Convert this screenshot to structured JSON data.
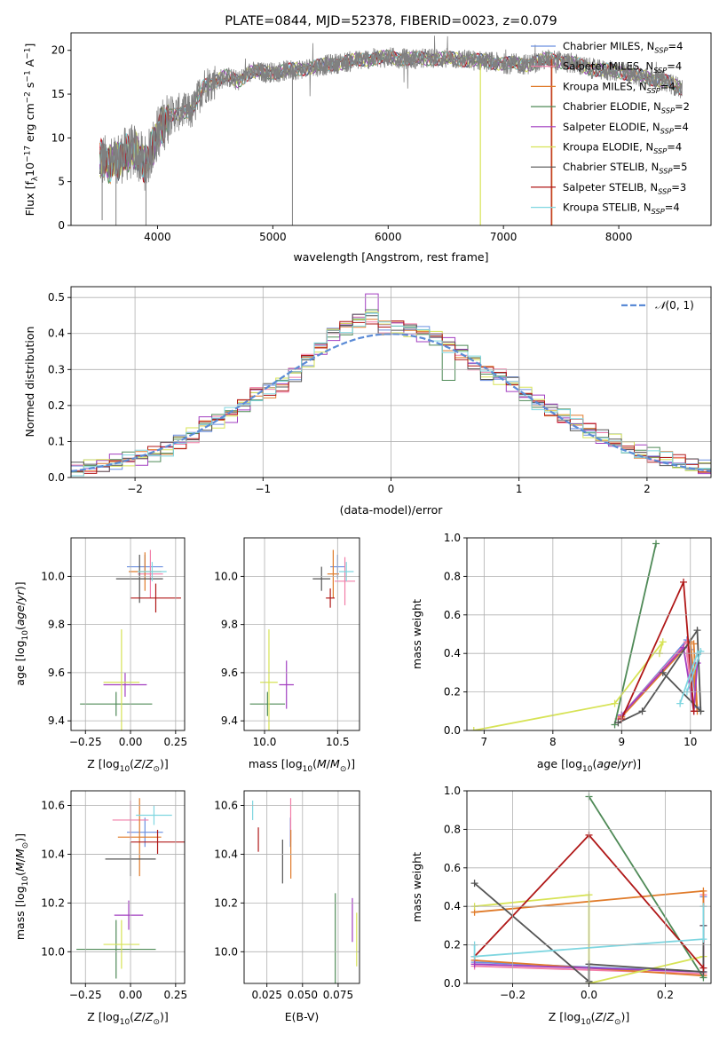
{
  "title": "PLATE=0844, MJD=52378, FIBERID=0023, z=0.079",
  "colors": {
    "Chabrier MILES": "#6a8fe0",
    "Salpeter MILES": "#f27ea8",
    "Kroupa MILES": "#e07b2a",
    "Chabrier ELODIE": "#4f8a57",
    "Salpeter ELODIE": "#a23fc0",
    "Kroupa ELODIE": "#d7e356",
    "Chabrier STELIB": "#555555",
    "Salpeter STELIB": "#b01818",
    "Kroupa STELIB": "#7fd6e0"
  },
  "chart_data": [
    {
      "id": "spectrum",
      "type": "line",
      "title": "PLATE=0844, MJD=52378, FIBERID=0023, z=0.079",
      "xlabel": "wavelength [Angstrom, rest frame]",
      "ylabel": "Flux [f_λ10^-17 erg cm^-2 s^-1 A^-1]",
      "xlim": [
        3250,
        8800
      ],
      "ylim": [
        0,
        22
      ],
      "xticks": [
        4000,
        5000,
        6000,
        7000,
        8000
      ],
      "yticks": [
        0,
        5,
        10,
        15,
        20
      ],
      "data_series": {
        "name": "data",
        "color": "#808080"
      },
      "envelope": {
        "x": [
          3500,
          3600,
          3700,
          3800,
          3900,
          4000,
          4100,
          4200,
          4300,
          4400,
          4500,
          4600,
          4700,
          4800,
          4900,
          5000,
          5200,
          5400,
          5600,
          5800,
          6000,
          6200,
          6400,
          6600,
          6800,
          7000,
          7200,
          7400,
          7600,
          7800,
          8000,
          8200,
          8400,
          8550
        ],
        "y": [
          7.5,
          7.0,
          8.0,
          8.5,
          7.0,
          10.5,
          12.5,
          13.0,
          13.0,
          16.0,
          16.5,
          17.0,
          16.5,
          17.5,
          17.5,
          17.5,
          17.8,
          18.2,
          18.6,
          19.0,
          19.2,
          19.0,
          19.1,
          19.0,
          18.8,
          18.5,
          18.4,
          19.0,
          18.5,
          17.8,
          17.6,
          17.0,
          16.5,
          15.6
        ]
      },
      "legend": {
        "placement": "upper right",
        "entries": [
          {
            "prefix": "Chabrier MILES, N",
            "sub": "SSP",
            "suffix": "=4"
          },
          {
            "prefix": "Salpeter MILES, N",
            "sub": "SSP",
            "suffix": "=4"
          },
          {
            "prefix": "Kroupa MILES, N",
            "sub": "SSP",
            "suffix": "=4"
          },
          {
            "prefix": "Chabrier ELODIE, N",
            "sub": "SSP",
            "suffix": "=2"
          },
          {
            "prefix": "Salpeter ELODIE, N",
            "sub": "SSP",
            "suffix": "=4"
          },
          {
            "prefix": "Kroupa ELODIE, N",
            "sub": "SSP",
            "suffix": "=4"
          },
          {
            "prefix": "Chabrier STELIB, N",
            "sub": "SSP",
            "suffix": "=5"
          },
          {
            "prefix": "Salpeter STELIB, N",
            "sub": "SSP",
            "suffix": "=3"
          },
          {
            "prefix": "Kroupa STELIB, N",
            "sub": "SSP",
            "suffix": "=4"
          }
        ]
      }
    },
    {
      "id": "residuals",
      "type": "bar",
      "xlabel": "(data-model)/error",
      "ylabel": "Normed distribution",
      "xlim": [
        -2.5,
        2.5
      ],
      "ylim": [
        0,
        0.53
      ],
      "xticks": [
        -2,
        -1,
        0,
        1,
        2
      ],
      "yticks": [
        0.0,
        0.1,
        0.2,
        0.3,
        0.4,
        0.5
      ],
      "bin_width": 0.1,
      "bins_left": [
        -2.5,
        -2.4,
        -2.3,
        -2.2,
        -2.1,
        -2.0,
        -1.9,
        -1.8,
        -1.7,
        -1.6,
        -1.5,
        -1.4,
        -1.3,
        -1.2,
        -1.1,
        -1.0,
        -0.9,
        -0.8,
        -0.7,
        -0.6,
        -0.5,
        -0.4,
        -0.3,
        -0.2,
        -0.1,
        0.0,
        0.1,
        0.2,
        0.3,
        0.4,
        0.5,
        0.6,
        0.7,
        0.8,
        0.9,
        1.0,
        1.1,
        1.2,
        1.3,
        1.4,
        1.5,
        1.6,
        1.7,
        1.8,
        1.9,
        2.0,
        2.1,
        2.2,
        2.3,
        2.4
      ],
      "base_values": [
        0.02,
        0.03,
        0.035,
        0.045,
        0.05,
        0.055,
        0.065,
        0.08,
        0.1,
        0.12,
        0.15,
        0.16,
        0.175,
        0.2,
        0.235,
        0.245,
        0.26,
        0.29,
        0.33,
        0.36,
        0.4,
        0.42,
        0.44,
        0.45,
        0.42,
        0.42,
        0.41,
        0.4,
        0.39,
        0.37,
        0.35,
        0.32,
        0.29,
        0.28,
        0.26,
        0.23,
        0.21,
        0.19,
        0.17,
        0.15,
        0.13,
        0.11,
        0.1,
        0.085,
        0.07,
        0.06,
        0.05,
        0.04,
        0.03,
        0.025
      ],
      "normal_curve": {
        "name": "N(0,1)",
        "mean": 0,
        "sigma": 1,
        "color": "#5b8bd6"
      },
      "legend": {
        "placement": "upper right"
      }
    },
    {
      "id": "age-vs-Z",
      "type": "scatter",
      "xlabel": "Z [log10(Z/Z☉)]",
      "ylabel": "age [log10(age/yr)]",
      "xlim": [
        -0.33,
        0.3
      ],
      "ylim": [
        9.36,
        10.16
      ],
      "xticks": [
        -0.25,
        0.0,
        0.25
      ],
      "yticks": [
        9.4,
        9.6,
        9.8,
        10.0
      ],
      "points": [
        {
          "model": "Chabrier MILES",
          "x": 0.08,
          "y": 10.04,
          "ex": 0.1,
          "ey": 0.05
        },
        {
          "model": "Salpeter MILES",
          "x": 0.11,
          "y": 10.01,
          "ex": 0.07,
          "ey": 0.1
        },
        {
          "model": "Kroupa MILES",
          "x": 0.08,
          "y": 10.02,
          "ex": 0.09,
          "ey": 0.08
        },
        {
          "model": "Chabrier ELODIE",
          "x": -0.08,
          "y": 9.47,
          "ex": 0.2,
          "ey": 0.05
        },
        {
          "model": "Salpeter ELODIE",
          "x": -0.03,
          "y": 9.55,
          "ex": 0.12,
          "ey": 0.05
        },
        {
          "model": "Kroupa ELODIE",
          "x": -0.05,
          "y": 9.56,
          "ex": 0.1,
          "ey": 0.22
        },
        {
          "model": "Chabrier STELIB",
          "x": 0.05,
          "y": 9.99,
          "ex": 0.13,
          "ey": 0.1
        },
        {
          "model": "Salpeter STELIB",
          "x": 0.14,
          "y": 9.91,
          "ex": 0.14,
          "ey": 0.06
        },
        {
          "model": "Kroupa STELIB",
          "x": 0.12,
          "y": 10.02,
          "ex": 0.08,
          "ey": 0.04
        }
      ]
    },
    {
      "id": "age-vs-mass",
      "type": "scatter",
      "xlabel": "mass [log10(M/M☉)]",
      "xlim": [
        9.86,
        10.65
      ],
      "ylim": [
        9.36,
        10.16
      ],
      "xticks": [
        10.0,
        10.5
      ],
      "yticks": [
        9.4,
        9.6,
        9.8,
        10.0
      ],
      "points": [
        {
          "model": "Chabrier MILES",
          "x": 10.5,
          "y": 10.04,
          "ex": 0.05,
          "ey": 0.05
        },
        {
          "model": "Salpeter MILES",
          "x": 10.55,
          "y": 9.98,
          "ex": 0.07,
          "ey": 0.1
        },
        {
          "model": "Kroupa MILES",
          "x": 10.47,
          "y": 10.01,
          "ex": 0.04,
          "ey": 0.1
        },
        {
          "model": "Chabrier ELODIE",
          "x": 10.02,
          "y": 9.47,
          "ex": 0.12,
          "ey": 0.05
        },
        {
          "model": "Salpeter ELODIE",
          "x": 10.15,
          "y": 9.55,
          "ex": 0.05,
          "ey": 0.1
        },
        {
          "model": "Kroupa ELODIE",
          "x": 10.03,
          "y": 9.56,
          "ex": 0.06,
          "ey": 0.22
        },
        {
          "model": "Chabrier STELIB",
          "x": 10.39,
          "y": 9.99,
          "ex": 0.06,
          "ey": 0.05
        },
        {
          "model": "Salpeter STELIB",
          "x": 10.45,
          "y": 9.91,
          "ex": 0.03,
          "ey": 0.04
        },
        {
          "model": "Kroupa STELIB",
          "x": 10.56,
          "y": 10.02,
          "ex": 0.05,
          "ey": 0.04
        }
      ]
    },
    {
      "id": "mass-weight-vs-age",
      "type": "line",
      "xlabel": "age [log10(age/yr)]",
      "ylabel": "mass weight",
      "xlim": [
        6.75,
        10.3
      ],
      "ylim": [
        0,
        1
      ],
      "xticks": [
        7,
        8,
        9,
        10
      ],
      "yticks": [
        0.0,
        0.2,
        0.4,
        0.6,
        0.8,
        1.0
      ],
      "series": [
        {
          "name": "Chabrier MILES",
          "points": [
            [
              9.0,
              0.08
            ],
            [
              9.95,
              0.47
            ],
            [
              10.1,
              0.12
            ],
            [
              10.0,
              0.42
            ]
          ]
        },
        {
          "name": "Salpeter MILES",
          "points": [
            [
              8.95,
              0.06
            ],
            [
              9.95,
              0.46
            ],
            [
              10.05,
              0.1
            ],
            [
              9.95,
              0.4
            ]
          ]
        },
        {
          "name": "Kroupa MILES",
          "points": [
            [
              9.0,
              0.07
            ],
            [
              10.0,
              0.46
            ],
            [
              10.1,
              0.1
            ],
            [
              10.05,
              0.45
            ]
          ]
        },
        {
          "name": "Chabrier ELODIE",
          "points": [
            [
              8.9,
              0.03
            ],
            [
              9.5,
              0.97
            ]
          ]
        },
        {
          "name": "Salpeter ELODIE",
          "points": [
            [
              9.0,
              0.08
            ],
            [
              9.9,
              0.43
            ],
            [
              10.05,
              0.1
            ],
            [
              10.1,
              0.35
            ]
          ]
        },
        {
          "name": "Kroupa ELODIE",
          "points": [
            [
              6.85,
              0.0
            ],
            [
              8.9,
              0.14
            ],
            [
              9.6,
              0.46
            ],
            [
              9.55,
              0.4
            ]
          ]
        },
        {
          "name": "Chabrier STELIB",
          "points": [
            [
              8.95,
              0.04
            ],
            [
              9.3,
              0.1
            ],
            [
              10.1,
              0.52
            ],
            [
              10.15,
              0.1
            ],
            [
              9.6,
              0.3
            ]
          ]
        },
        {
          "name": "Salpeter STELIB",
          "points": [
            [
              9.0,
              0.06
            ],
            [
              9.9,
              0.77
            ],
            [
              10.05,
              0.1
            ]
          ]
        },
        {
          "name": "Kroupa STELIB",
          "points": [
            [
              9.85,
              0.14
            ],
            [
              10.1,
              0.4
            ],
            [
              10.15,
              0.41
            ],
            [
              9.95,
              0.2
            ]
          ]
        }
      ]
    },
    {
      "id": "mass-vs-Z",
      "type": "scatter",
      "xlabel": "Z [log10(Z/Z☉)]",
      "ylabel": "mass [log10(M/M☉)]",
      "xlim": [
        -0.33,
        0.3
      ],
      "ylim": [
        9.87,
        10.66
      ],
      "xticks": [
        -0.25,
        0.0,
        0.25
      ],
      "yticks": [
        10.0,
        10.2,
        10.4,
        10.6
      ],
      "points": [
        {
          "model": "Chabrier MILES",
          "x": 0.08,
          "y": 10.49,
          "ex": 0.1,
          "ey": 0.06
        },
        {
          "model": "Salpeter MILES",
          "x": 0.0,
          "y": 10.54,
          "ex": 0.1,
          "ey": 0.08
        },
        {
          "model": "Kroupa MILES",
          "x": 0.05,
          "y": 10.47,
          "ex": 0.12,
          "ey": 0.16
        },
        {
          "model": "Chabrier ELODIE",
          "x": -0.08,
          "y": 10.01,
          "ex": 0.22,
          "ey": 0.12
        },
        {
          "model": "Salpeter ELODIE",
          "x": -0.01,
          "y": 10.15,
          "ex": 0.08,
          "ey": 0.06
        },
        {
          "model": "Kroupa ELODIE",
          "x": -0.05,
          "y": 10.03,
          "ex": 0.1,
          "ey": 0.1
        },
        {
          "model": "Chabrier STELIB",
          "x": 0.0,
          "y": 10.38,
          "ex": 0.14,
          "ey": 0.07
        },
        {
          "model": "Salpeter STELIB",
          "x": 0.15,
          "y": 10.45,
          "ex": 0.15,
          "ey": 0.05
        },
        {
          "model": "Kroupa STELIB",
          "x": 0.13,
          "y": 10.56,
          "ex": 0.1,
          "ey": 0.04
        }
      ]
    },
    {
      "id": "mass-vs-ebv",
      "type": "scatter",
      "xlabel": "E(B-V)",
      "xlim": [
        0.009,
        0.09
      ],
      "ylim": [
        9.87,
        10.66
      ],
      "xticks": [
        0.025,
        0.05,
        0.075
      ],
      "xtick_labels": [
        "0.025",
        "0.050",
        "0.075"
      ],
      "yticks": [
        10.0,
        10.2,
        10.4,
        10.6
      ],
      "points": [
        {
          "model": "Chabrier MILES",
          "x": 0.0415,
          "y": 10.49,
          "ex": 0,
          "ey": 0.06
        },
        {
          "model": "Salpeter MILES",
          "x": 0.0417,
          "y": 10.54,
          "ex": 0,
          "ey": 0.09
        },
        {
          "model": "Kroupa MILES",
          "x": 0.0418,
          "y": 10.4,
          "ex": 0,
          "ey": 0.1
        },
        {
          "model": "Chabrier ELODIE",
          "x": 0.073,
          "y": 10.05,
          "ex": 0,
          "ey": 0.19
        },
        {
          "model": "Salpeter ELODIE",
          "x": 0.085,
          "y": 10.13,
          "ex": 0,
          "ey": 0.09
        },
        {
          "model": "Kroupa ELODIE",
          "x": 0.088,
          "y": 10.05,
          "ex": 0,
          "ey": 0.11
        },
        {
          "model": "Chabrier STELIB",
          "x": 0.036,
          "y": 10.37,
          "ex": 0,
          "ey": 0.09
        },
        {
          "model": "Salpeter STELIB",
          "x": 0.019,
          "y": 10.46,
          "ex": 0,
          "ey": 0.05
        },
        {
          "model": "Kroupa STELIB",
          "x": 0.015,
          "y": 10.58,
          "ex": 0,
          "ey": 0.04
        }
      ]
    },
    {
      "id": "mass-weight-vs-Z",
      "type": "line",
      "xlabel": "Z [log10(Z/Z☉)]",
      "ylabel": "mass weight",
      "xlim": [
        -0.32,
        0.32
      ],
      "ylim": [
        0,
        1
      ],
      "xticks": [
        -0.2,
        0.0,
        0.2
      ],
      "yticks": [
        0.0,
        0.2,
        0.4,
        0.6,
        0.8,
        1.0
      ],
      "series": [
        {
          "name": "Chabrier MILES",
          "points": [
            [
              -0.3,
              0.11
            ],
            [
              0.3,
              0.06
            ],
            [
              0.3,
              0.45
            ]
          ]
        },
        {
          "name": "Salpeter MILES",
          "points": [
            [
              -0.3,
              0.09
            ],
            [
              0.3,
              0.05
            ],
            [
              0.3,
              0.46
            ]
          ]
        },
        {
          "name": "Kroupa MILES",
          "points": [
            [
              -0.3,
              0.12
            ],
            [
              0.3,
              0.04
            ],
            [
              0.3,
              0.48
            ],
            [
              -0.3,
              0.37
            ]
          ]
        },
        {
          "name": "Chabrier ELODIE",
          "points": [
            [
              0.0,
              0.97
            ],
            [
              0.3,
              0.03
            ]
          ]
        },
        {
          "name": "Salpeter ELODIE",
          "points": [
            [
              -0.3,
              0.1
            ],
            [
              0.3,
              0.06
            ],
            [
              0.3,
              0.3
            ]
          ]
        },
        {
          "name": "Kroupa ELODIE",
          "points": [
            [
              -0.3,
              0.4
            ],
            [
              0.0,
              0.46
            ],
            [
              0.0,
              0.0
            ],
            [
              0.3,
              0.14
            ]
          ]
        },
        {
          "name": "Chabrier STELIB",
          "points": [
            [
              -0.3,
              0.52
            ],
            [
              0.0,
              0.01
            ],
            [
              0.0,
              0.1
            ],
            [
              0.3,
              0.06
            ],
            [
              0.3,
              0.3
            ]
          ]
        },
        {
          "name": "Salpeter STELIB",
          "points": [
            [
              -0.3,
              0.14
            ],
            [
              0.0,
              0.77
            ],
            [
              0.3,
              0.08
            ]
          ]
        },
        {
          "name": "Kroupa STELIB",
          "points": [
            [
              -0.3,
              0.2
            ],
            [
              -0.3,
              0.14
            ],
            [
              0.3,
              0.23
            ],
            [
              0.3,
              0.4
            ]
          ]
        }
      ]
    }
  ]
}
